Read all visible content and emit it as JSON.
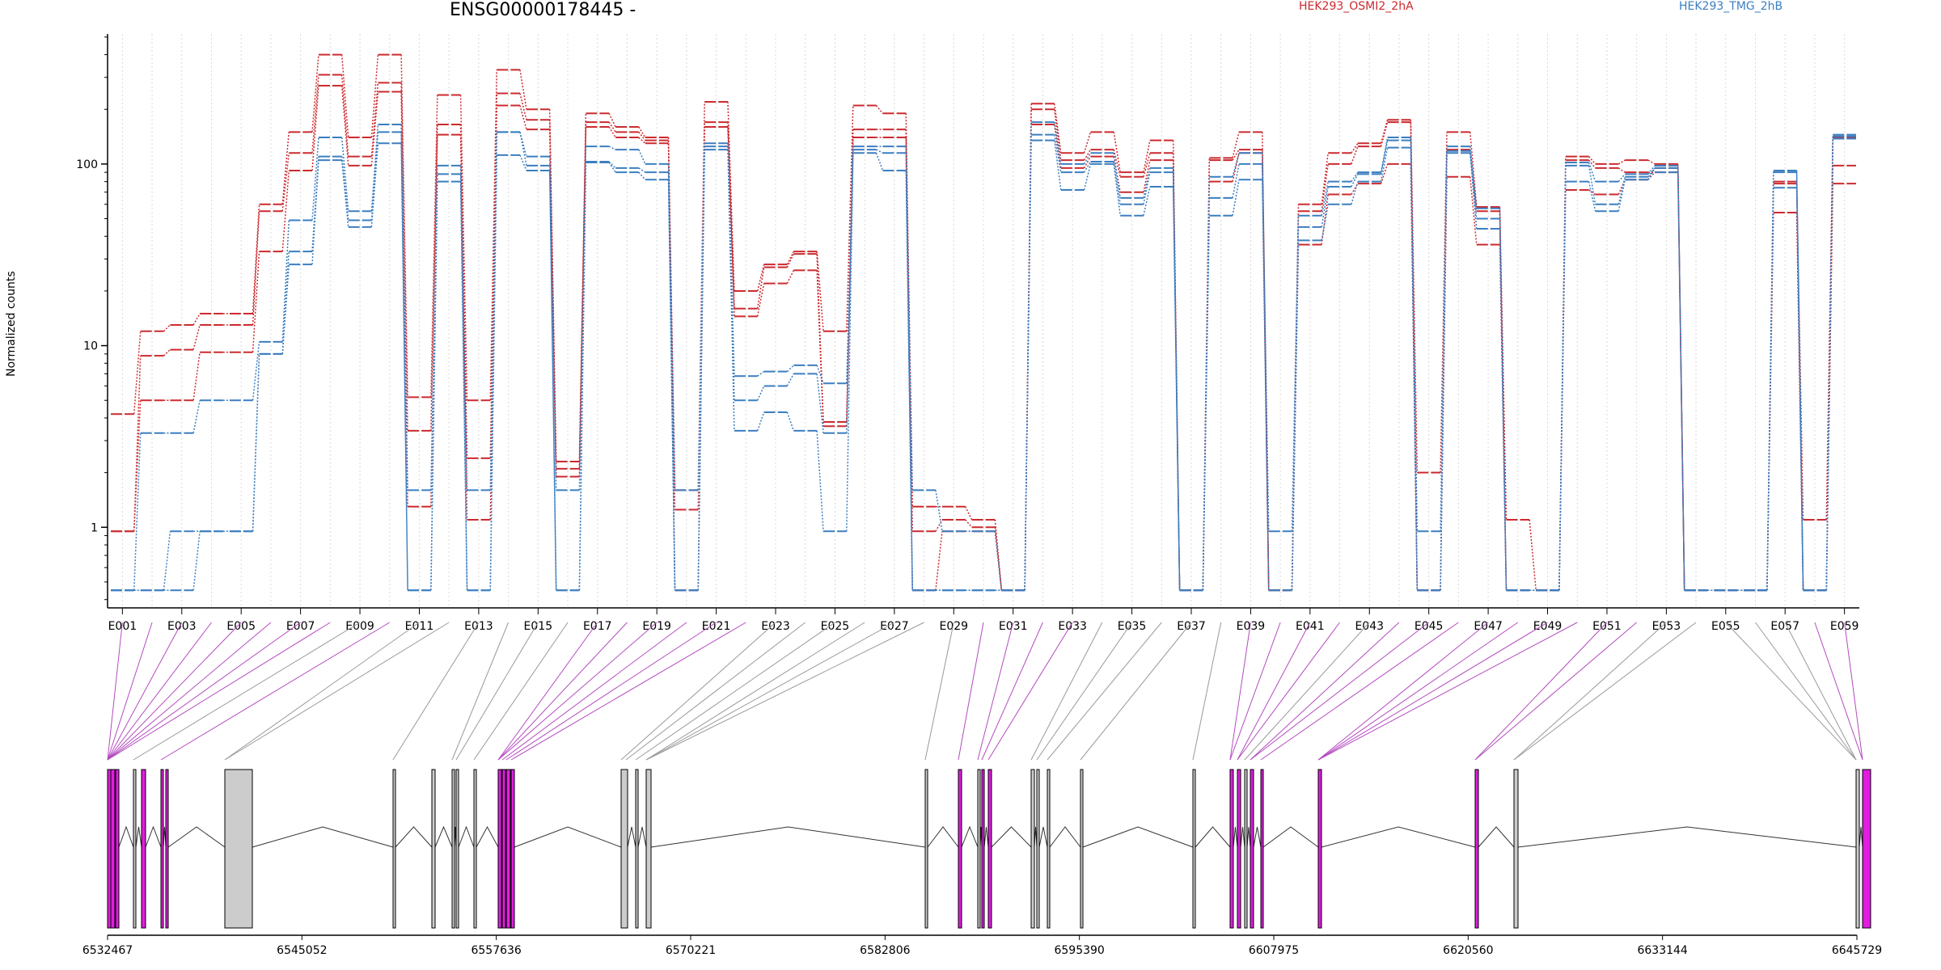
{
  "chart_data": {
    "type": "line",
    "title": "ENSG00000178445 -",
    "ylabel": "Normalized counts",
    "y_scale": "log",
    "ylim": [
      0.36,
      520
    ],
    "y_ticks": [
      {
        "value": 1,
        "label": "1"
      },
      {
        "value": 10,
        "label": "10"
      },
      {
        "value": 100,
        "label": "100"
      }
    ],
    "grid": "vertical dotted lines at each exon bin",
    "legend": [
      {
        "name": "HEK293_OSMI2_2hA",
        "color": "#cc2a2f"
      },
      {
        "name": "HEK293_TMG_2hB",
        "color": "#3b7ec0"
      }
    ],
    "categories": [
      "E001",
      "E002",
      "E003",
      "E004",
      "E005",
      "E006",
      "E007",
      "E008",
      "E009",
      "E010",
      "E011",
      "E012",
      "E013",
      "E014",
      "E015",
      "E016",
      "E017",
      "E018",
      "E019",
      "E020",
      "E021",
      "E022",
      "E023",
      "E024",
      "E025",
      "E026",
      "E027",
      "E028",
      "E029",
      "E030",
      "E031",
      "E032",
      "E033",
      "E034",
      "E035",
      "E036",
      "E037",
      "E038",
      "E039",
      "E040",
      "E041",
      "E042",
      "E043",
      "E044",
      "E045",
      "E046",
      "E047",
      "E048",
      "E049",
      "E050",
      "E051",
      "E052",
      "E053",
      "E054",
      "E055",
      "E056",
      "E057",
      "E058",
      "E059"
    ],
    "x_tick_labels": [
      "E001",
      "E003",
      "E005",
      "E007",
      "E009",
      "E011",
      "E013",
      "E015",
      "E017",
      "E019",
      "E021",
      "E023",
      "E025",
      "E027",
      "E029",
      "E031",
      "E033",
      "E035",
      "E037",
      "E039",
      "E041",
      "E043",
      "E045",
      "E047",
      "E049",
      "E051",
      "E053",
      "E055",
      "E057",
      "E059"
    ],
    "series": [
      {
        "group": "HEK293_OSMI2_2hA",
        "color": "#cc2a2f",
        "values": [
          4.2,
          12,
          13,
          15,
          15,
          60,
          150,
          400,
          140,
          400,
          5.2,
          240,
          5,
          330,
          200,
          2.3,
          190,
          160,
          140,
          1.6,
          220,
          20,
          28,
          33,
          12,
          210,
          190,
          1.3,
          1.3,
          1.1,
          0.45,
          215,
          115,
          150,
          90,
          135,
          0.45,
          108,
          150,
          0.45,
          60,
          115,
          130,
          175,
          2,
          150,
          58,
          1.1,
          0.45,
          110,
          100,
          105,
          100,
          0.45,
          0.45,
          0.45,
          80,
          1.1,
          140
        ]
      },
      {
        "group": "HEK293_OSMI2_2hA",
        "color": "#cc2a2f",
        "values": [
          0.95,
          8.8,
          9.5,
          13,
          13,
          55,
          115,
          310,
          110,
          280,
          3.4,
          165,
          2.4,
          245,
          175,
          2.1,
          170,
          150,
          135,
          1.25,
          170,
          16,
          27,
          32,
          3.8,
          155,
          155,
          0.95,
          1.1,
          1.0,
          0.45,
          200,
          105,
          120,
          85,
          115,
          0.45,
          105,
          120,
          0.45,
          55,
          100,
          125,
          170,
          0.45,
          120,
          55,
          0.45,
          0.45,
          105,
          95,
          90,
          90,
          0.45,
          0.45,
          0.45,
          78,
          0.45,
          98
        ]
      },
      {
        "group": "HEK293_OSMI2_2hA",
        "color": "#cc2a2f",
        "values": [
          0.95,
          5,
          5,
          9.2,
          9.2,
          33,
          92,
          270,
          98,
          250,
          1.3,
          145,
          1.1,
          210,
          155,
          1.9,
          160,
          140,
          130,
          0.45,
          160,
          14.5,
          22,
          26,
          3.6,
          140,
          140,
          0.45,
          0.95,
          0.95,
          0.45,
          165,
          95,
          110,
          70,
          105,
          0.45,
          80,
          115,
          0.45,
          36,
          68,
          78,
          100,
          0.45,
          85,
          36,
          0.45,
          0.45,
          72,
          68,
          82,
          95,
          0.45,
          0.45,
          0.45,
          54,
          0.45,
          78
        ]
      },
      {
        "group": "HEK293_TMG_2hB",
        "color": "#3b7ec0",
        "values": [
          0.45,
          3.3,
          3.3,
          5,
          5,
          10.5,
          49,
          140,
          55,
          165,
          1.6,
          98,
          1.6,
          150,
          110,
          1.6,
          125,
          120,
          100,
          1.6,
          130,
          6.8,
          7.2,
          7.8,
          6.2,
          125,
          125,
          1.6,
          0.95,
          0.95,
          0.45,
          170,
          100,
          115,
          65,
          95,
          0.45,
          85,
          115,
          0.95,
          52,
          80,
          90,
          140,
          0.95,
          125,
          57,
          0.45,
          0.45,
          102,
          80,
          88,
          98,
          0.45,
          0.45,
          0.45,
          92,
          0.45,
          145
        ]
      },
      {
        "group": "HEK293_TMG_2hB",
        "color": "#3b7ec0",
        "values": [
          0.45,
          0.45,
          0.95,
          0.95,
          0.95,
          9,
          33,
          110,
          49,
          150,
          0.45,
          88,
          0.45,
          150,
          98,
          0.45,
          103,
          95,
          90,
          0.45,
          125,
          5,
          6,
          7,
          3.3,
          120,
          115,
          0.45,
          0.45,
          0.45,
          0.45,
          145,
          90,
          103,
          60,
          90,
          0.45,
          65,
          100,
          0.45,
          45,
          75,
          88,
          135,
          0.45,
          118,
          50,
          0.45,
          0.45,
          98,
          60,
          85,
          95,
          0.45,
          0.45,
          0.45,
          90,
          0.45,
          142
        ]
      },
      {
        "group": "HEK293_TMG_2hB",
        "color": "#3b7ec0",
        "values": [
          0.45,
          0.45,
          0.45,
          0.95,
          0.95,
          9,
          28,
          105,
          45,
          130,
          0.45,
          80,
          0.45,
          112,
          92,
          0.45,
          102,
          90,
          82,
          0.45,
          120,
          3.4,
          4.3,
          3.4,
          0.95,
          115,
          92,
          0.45,
          0.45,
          0.45,
          0.45,
          135,
          72,
          100,
          52,
          75,
          0.45,
          52,
          82,
          0.45,
          38,
          60,
          80,
          123,
          0.45,
          115,
          44,
          0.45,
          0.45,
          80,
          55,
          82,
          90,
          0.45,
          0.45,
          0.45,
          74,
          0.45,
          138
        ]
      }
    ]
  },
  "gene_model": {
    "coordinate_labels": [
      "6532467",
      "6545052",
      "6557636",
      "6570221",
      "6582806",
      "6595390",
      "6607975",
      "6620560",
      "6633144",
      "6645729"
    ],
    "highlight_color": "#e11de0",
    "exon_color_grey": "#cccccc"
  }
}
